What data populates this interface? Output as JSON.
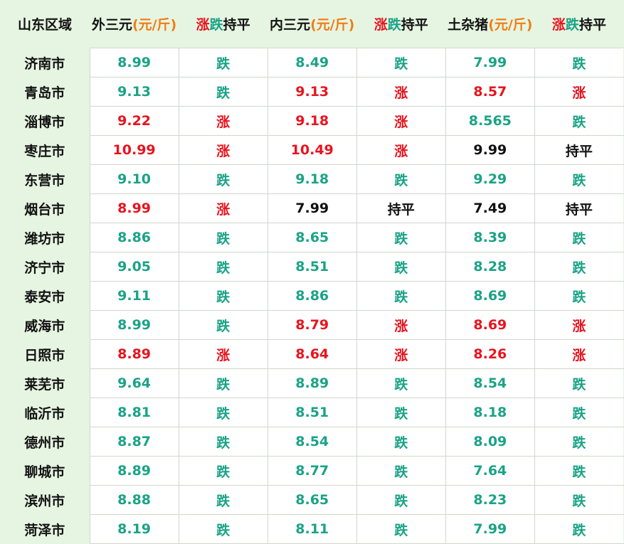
{
  "header": {
    "region": "山东区域",
    "waisan_name": "外三元",
    "neisan_name": "内三元",
    "tuza_name": "土杂猪",
    "unit": "(元/斤)",
    "up_word": "涨",
    "down_word": "跌",
    "flat_word": "持平"
  },
  "colors": {
    "up": "#e8141e",
    "down": "#1aa386",
    "flat": "#111111",
    "unit": "#f07d14",
    "header_bg": "#e6f5e2"
  },
  "rows": [
    {
      "region": "济南市",
      "waisan": "8.99",
      "waisan_trend": "跌",
      "waisan_dir": "down",
      "neisan": "8.49",
      "neisan_trend": "跌",
      "neisan_dir": "down",
      "tuza": "7.99",
      "tuza_trend": "跌",
      "tuza_dir": "down"
    },
    {
      "region": "青岛市",
      "waisan": "9.13",
      "waisan_trend": "跌",
      "waisan_dir": "down",
      "neisan": "9.13",
      "neisan_trend": "涨",
      "neisan_dir": "up",
      "tuza": "8.57",
      "tuza_trend": "涨",
      "tuza_dir": "up"
    },
    {
      "region": "淄博市",
      "waisan": "9.22",
      "waisan_trend": "涨",
      "waisan_dir": "up",
      "neisan": "9.18",
      "neisan_trend": "涨",
      "neisan_dir": "up",
      "tuza": "8.565",
      "tuza_trend": "跌",
      "tuza_dir": "down"
    },
    {
      "region": "枣庄市",
      "waisan": "10.99",
      "waisan_trend": "涨",
      "waisan_dir": "up",
      "neisan": "10.49",
      "neisan_trend": "涨",
      "neisan_dir": "up",
      "tuza": "9.99",
      "tuza_trend": "持平",
      "tuza_dir": "flat"
    },
    {
      "region": "东营市",
      "waisan": "9.10",
      "waisan_trend": "跌",
      "waisan_dir": "down",
      "neisan": "9.18",
      "neisan_trend": "跌",
      "neisan_dir": "down",
      "tuza": "9.29",
      "tuza_trend": "跌",
      "tuza_dir": "down"
    },
    {
      "region": "烟台市",
      "waisan": "8.99",
      "waisan_trend": "涨",
      "waisan_dir": "up",
      "neisan": "7.99",
      "neisan_trend": "持平",
      "neisan_dir": "flat",
      "tuza": "7.49",
      "tuza_trend": "持平",
      "tuza_dir": "flat"
    },
    {
      "region": "潍坊市",
      "waisan": "8.86",
      "waisan_trend": "跌",
      "waisan_dir": "down",
      "neisan": "8.65",
      "neisan_trend": "跌",
      "neisan_dir": "down",
      "tuza": "8.39",
      "tuza_trend": "跌",
      "tuza_dir": "down"
    },
    {
      "region": "济宁市",
      "waisan": "9.05",
      "waisan_trend": "跌",
      "waisan_dir": "down",
      "neisan": "8.51",
      "neisan_trend": "跌",
      "neisan_dir": "down",
      "tuza": "8.28",
      "tuza_trend": "跌",
      "tuza_dir": "down"
    },
    {
      "region": "泰安市",
      "waisan": "9.11",
      "waisan_trend": "跌",
      "waisan_dir": "down",
      "neisan": "8.86",
      "neisan_trend": "跌",
      "neisan_dir": "down",
      "tuza": "8.69",
      "tuza_trend": "跌",
      "tuza_dir": "down"
    },
    {
      "region": "威海市",
      "waisan": "8.99",
      "waisan_trend": "跌",
      "waisan_dir": "down",
      "neisan": "8.79",
      "neisan_trend": "涨",
      "neisan_dir": "up",
      "tuza": "8.69",
      "tuza_trend": "涨",
      "tuza_dir": "up"
    },
    {
      "region": "日照市",
      "waisan": "8.89",
      "waisan_trend": "涨",
      "waisan_dir": "up",
      "neisan": "8.64",
      "neisan_trend": "涨",
      "neisan_dir": "up",
      "tuza": "8.26",
      "tuza_trend": "涨",
      "tuza_dir": "up"
    },
    {
      "region": "莱芜市",
      "waisan": "9.64",
      "waisan_trend": "跌",
      "waisan_dir": "down",
      "neisan": "8.89",
      "neisan_trend": "跌",
      "neisan_dir": "down",
      "tuza": "8.54",
      "tuza_trend": "跌",
      "tuza_dir": "down"
    },
    {
      "region": "临沂市",
      "waisan": "8.81",
      "waisan_trend": "跌",
      "waisan_dir": "down",
      "neisan": "8.51",
      "neisan_trend": "跌",
      "neisan_dir": "down",
      "tuza": "8.18",
      "tuza_trend": "跌",
      "tuza_dir": "down"
    },
    {
      "region": "德州市",
      "waisan": "8.87",
      "waisan_trend": "跌",
      "waisan_dir": "down",
      "neisan": "8.54",
      "neisan_trend": "跌",
      "neisan_dir": "down",
      "tuza": "8.09",
      "tuza_trend": "跌",
      "tuza_dir": "down"
    },
    {
      "region": "聊城市",
      "waisan": "8.89",
      "waisan_trend": "跌",
      "waisan_dir": "down",
      "neisan": "8.77",
      "neisan_trend": "跌",
      "neisan_dir": "down",
      "tuza": "7.64",
      "tuza_trend": "跌",
      "tuza_dir": "down"
    },
    {
      "region": "滨州市",
      "waisan": "8.88",
      "waisan_trend": "跌",
      "waisan_dir": "down",
      "neisan": "8.65",
      "neisan_trend": "跌",
      "neisan_dir": "down",
      "tuza": "8.23",
      "tuza_trend": "跌",
      "tuza_dir": "down"
    },
    {
      "region": "菏泽市",
      "waisan": "8.19",
      "waisan_trend": "跌",
      "waisan_dir": "down",
      "neisan": "8.11",
      "neisan_trend": "跌",
      "neisan_dir": "down",
      "tuza": "7.99",
      "tuza_trend": "跌",
      "tuza_dir": "down"
    }
  ]
}
